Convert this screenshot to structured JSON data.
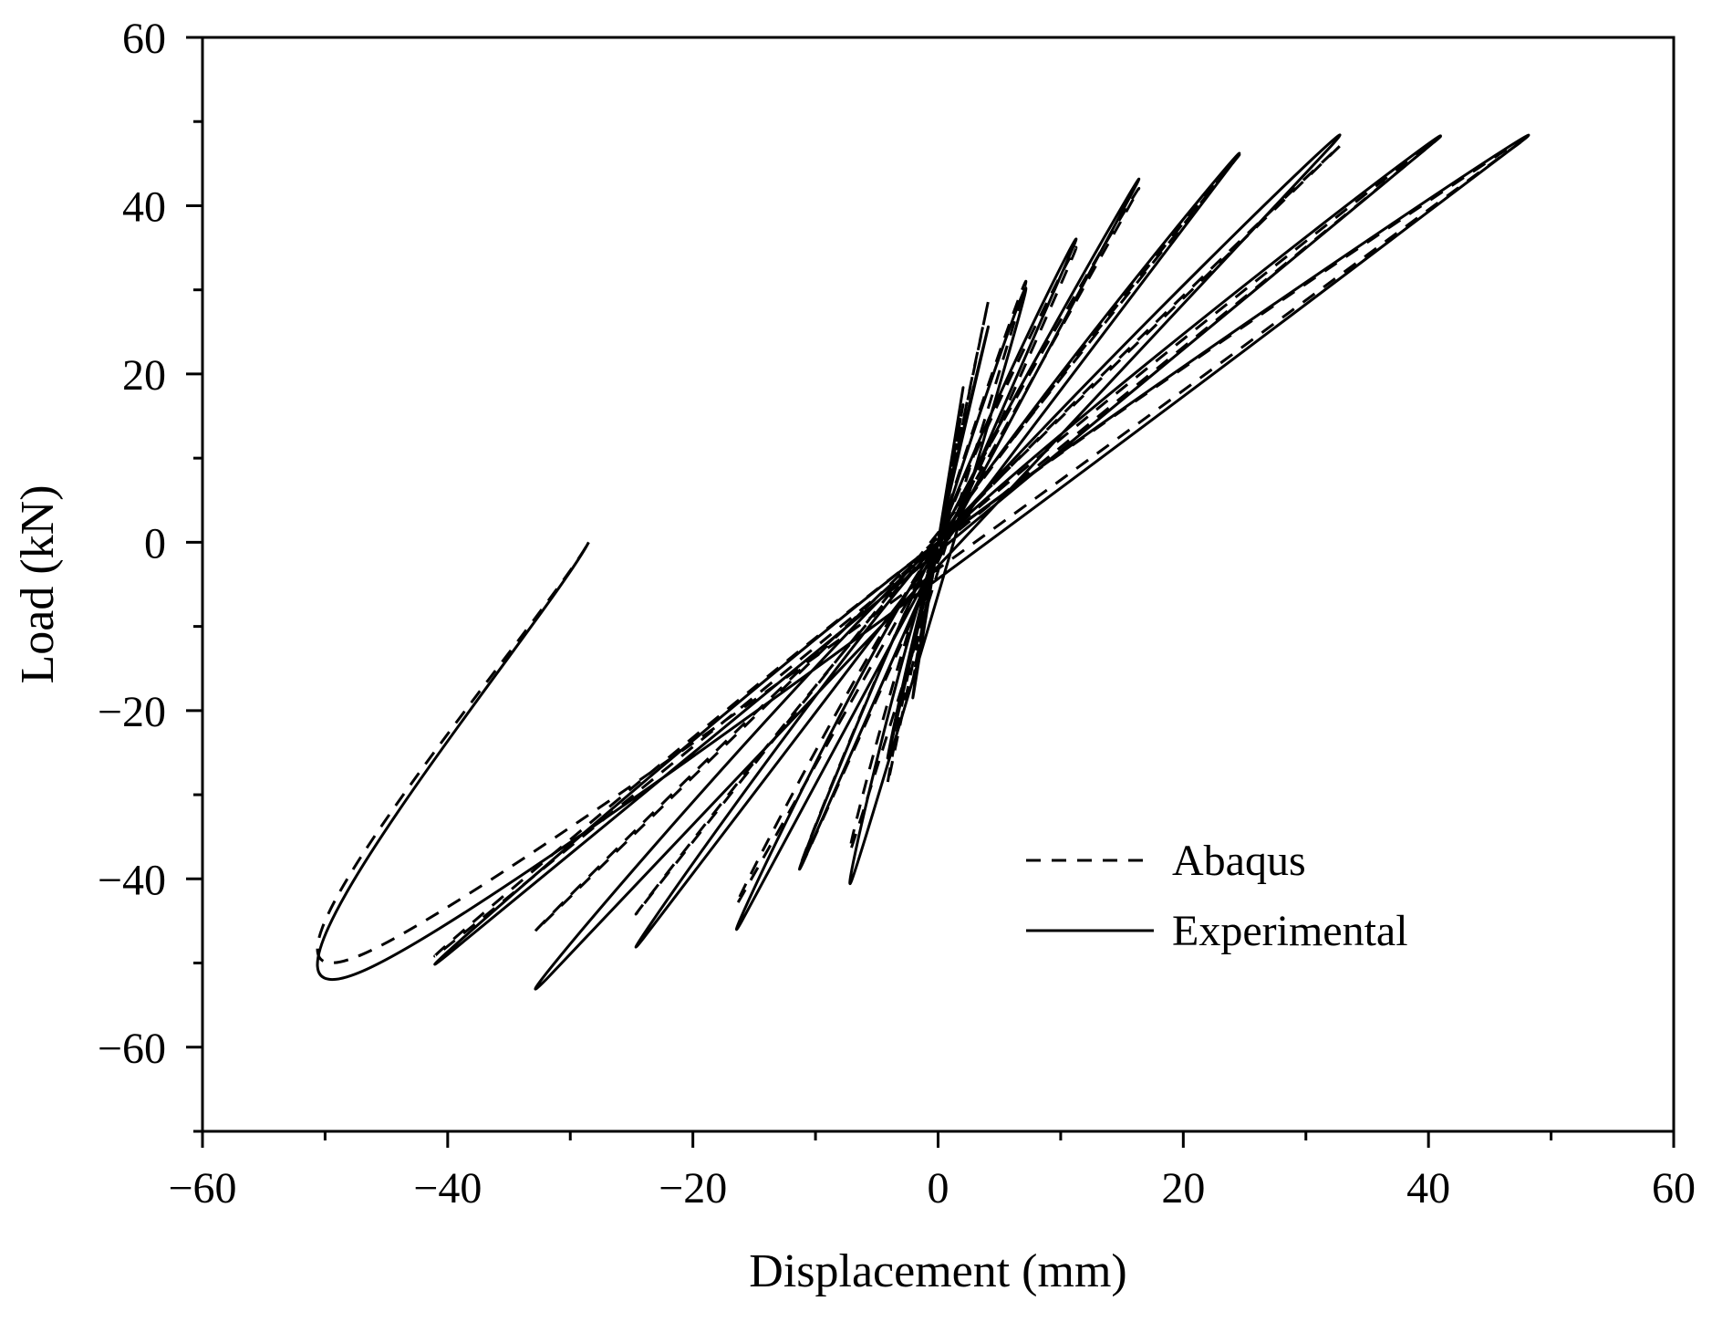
{
  "chart_data": {
    "type": "line",
    "title": "",
    "xlabel": "Displacement (mm)",
    "ylabel": "Load (kN)",
    "xlim": [
      -60,
      60
    ],
    "ylim": [
      -70,
      60
    ],
    "xticks": [
      -60,
      -40,
      -20,
      0,
      20,
      40,
      60
    ],
    "yticks": [
      -60,
      -40,
      -20,
      0,
      20,
      40,
      60
    ],
    "xtick_labels": [
      "−60",
      "−40",
      "−20",
      "0",
      "20",
      "40",
      "60"
    ],
    "ytick_labels": [
      "−60",
      "−40",
      "−20",
      "0",
      "20",
      "40",
      "60"
    ],
    "grid": false,
    "legend_position": "bottom-right",
    "series": [
      {
        "name": "Abaqus",
        "style": "dashed",
        "color": "#000000",
        "x": [
          0,
          2,
          -2,
          0,
          4,
          -4,
          0,
          7,
          -7,
          0,
          11,
          -11,
          0,
          16,
          -16,
          0,
          24,
          -24,
          0,
          32,
          -32,
          0,
          40,
          -40,
          0,
          47,
          -47,
          -28.5
        ],
        "y": [
          0,
          16,
          -16,
          0,
          28,
          -28,
          0,
          30,
          -36,
          0,
          34,
          -38,
          0,
          41,
          -42,
          0,
          45,
          -43,
          0,
          46,
          -45,
          0,
          47,
          -48,
          0,
          47,
          -49,
          0
        ]
      },
      {
        "name": "Experimental",
        "style": "solid",
        "color": "#000000",
        "x": [
          0,
          2,
          -2,
          0,
          4,
          -4,
          0,
          7,
          -7,
          0,
          11,
          -11,
          0,
          16,
          -16,
          0,
          24,
          -24,
          0,
          32,
          -32,
          0,
          40,
          -40,
          0,
          47,
          -47,
          -28.5
        ],
        "y": [
          0,
          18,
          -18,
          0,
          25,
          -25,
          0,
          29,
          -40,
          0,
          35,
          -38,
          0,
          42,
          -45,
          0,
          45,
          -47,
          0,
          47,
          -52,
          0,
          47,
          -49,
          0,
          47,
          -51,
          0
        ]
      }
    ]
  }
}
